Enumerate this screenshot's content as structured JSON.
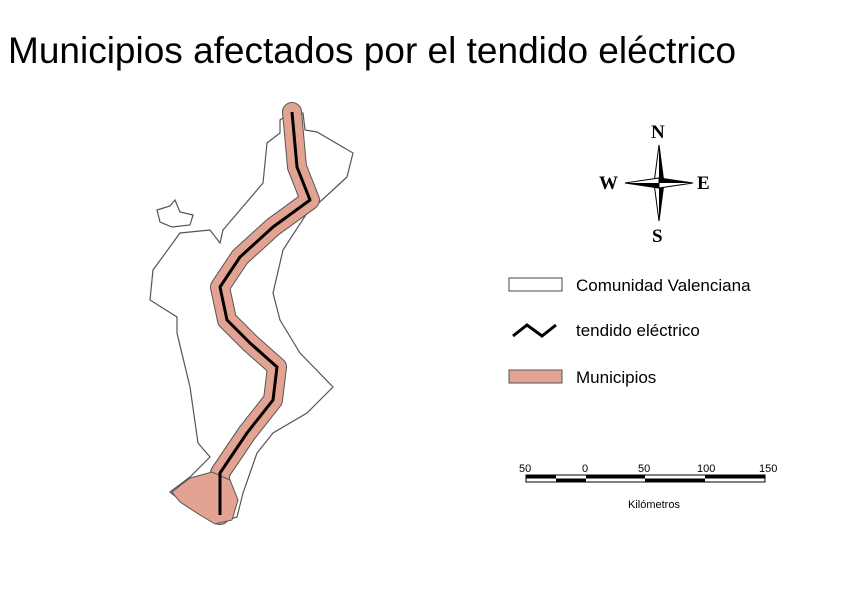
{
  "title": "Municipios afectados por el tendido eléctrico",
  "compass": {
    "n": "N",
    "s": "S",
    "e": "E",
    "w": "W"
  },
  "legend": [
    {
      "label": "Comunidad Valenciana",
      "fill": "#ffffff"
    },
    {
      "label": "tendido eléctrico",
      "color": "#000000"
    },
    {
      "label": "Municipios",
      "fill": "#e3a392"
    }
  ],
  "scale_bar": {
    "ticks": [
      "50",
      "0",
      "50",
      "100",
      "150"
    ],
    "unit": "Kilómetros"
  },
  "colors": {
    "municipios": "#e3a392",
    "border": "#555555",
    "line": "#000000"
  }
}
